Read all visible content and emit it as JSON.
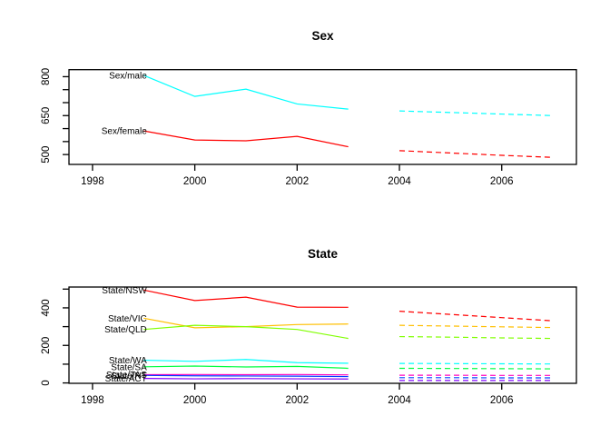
{
  "figure": {
    "background": "#ffffff",
    "axis_color": "#000000",
    "text_color": "#000000"
  },
  "chart_data": [
    {
      "type": "line",
      "title": "Sex",
      "xlabel": "",
      "ylabel": "",
      "grid": false,
      "legend_position": "labels-at-line-start",
      "xlim": [
        1997.54,
        2007.46
      ],
      "ylim": [
        462,
        827
      ],
      "x_ticks": [
        1998,
        2000,
        2002,
        2004,
        2006
      ],
      "y_ticks": [
        500,
        550,
        600,
        650,
        700,
        750,
        800
      ],
      "y_tick_labels": [
        500,
        650,
        800
      ],
      "x_history": [
        1999,
        2000,
        2001,
        2002,
        2003
      ],
      "x_forecast": [
        2004,
        2005,
        2006,
        2007
      ],
      "history_linestyle": "solid",
      "forecast_linestyle": "dashed",
      "series": [
        {
          "name": "Sex/male",
          "color": "#00FFFF",
          "history": [
            805,
            724,
            752,
            695,
            675
          ],
          "forecast": [
            668,
            662,
            656,
            650
          ]
        },
        {
          "name": "Sex/female",
          "color": "#FF0000",
          "history": [
            591,
            556,
            553,
            570,
            530
          ],
          "forecast": [
            515,
            506,
            497,
            489
          ]
        }
      ]
    },
    {
      "type": "line",
      "title": "State",
      "xlabel": "",
      "ylabel": "",
      "grid": false,
      "legend_position": "labels-at-line-start",
      "xlim": [
        1997.54,
        2007.46
      ],
      "ylim": [
        -2,
        511
      ],
      "x_ticks": [
        1998,
        2000,
        2002,
        2004,
        2006
      ],
      "y_ticks": [
        0,
        100,
        200,
        300,
        400,
        500
      ],
      "y_tick_labels": [
        0,
        200,
        400
      ],
      "x_history": [
        1999,
        2000,
        2001,
        2002,
        2003
      ],
      "x_forecast": [
        2004,
        2005,
        2006,
        2007
      ],
      "history_linestyle": "solid",
      "forecast_linestyle": "dashed",
      "series": [
        {
          "name": "State/NSW",
          "color": "#FF0000",
          "history": [
            495,
            439,
            457,
            404,
            403
          ],
          "forecast": [
            382,
            365,
            348,
            331
          ]
        },
        {
          "name": "State/VIC",
          "color": "#FFBF00",
          "history": [
            345,
            294,
            300,
            311,
            314
          ],
          "forecast": [
            307,
            303,
            299,
            295
          ]
        },
        {
          "name": "State/QLD",
          "color": "#80FF00",
          "history": [
            285,
            307,
            300,
            285,
            237
          ],
          "forecast": [
            247,
            244,
            240,
            237
          ]
        },
        {
          "name": "State/WA",
          "color": "#00FFFF",
          "history": [
            121,
            115,
            125,
            108,
            105
          ],
          "forecast": [
            104,
            103,
            102,
            101
          ]
        },
        {
          "name": "State/SA",
          "color": "#00FF40",
          "history": [
            86,
            90,
            85,
            88,
            78
          ],
          "forecast": [
            78,
            77,
            76,
            75
          ]
        },
        {
          "name": "State/TAS",
          "color": "#FF00BF",
          "history": [
            44,
            45,
            44,
            45,
            43
          ],
          "forecast": [
            41,
            41,
            40,
            40
          ]
        },
        {
          "name": "State/NT",
          "color": "#0040FF",
          "history": [
            40,
            38,
            37,
            36,
            34
          ],
          "forecast": [
            28,
            28,
            27,
            27
          ]
        },
        {
          "name": "State/ACT",
          "color": "#8000FF",
          "history": [
            24,
            22,
            23,
            22,
            21
          ],
          "forecast": [
            13,
            13,
            13,
            13
          ]
        }
      ]
    }
  ]
}
